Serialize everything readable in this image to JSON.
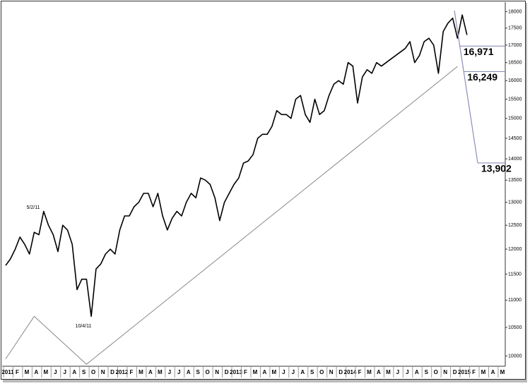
{
  "chart_data": {
    "type": "line",
    "log_scale": true,
    "grid": false,
    "connect_gaps_color": "#888888",
    "categories": [
      "2011",
      null,
      "F",
      null,
      "M",
      null,
      "A",
      null,
      "M",
      null,
      "J",
      null,
      "J",
      null,
      "A",
      null,
      "S",
      null,
      "O",
      null,
      "N",
      null,
      "D",
      null,
      "2012",
      null,
      "F",
      null,
      "M",
      null,
      "A",
      null,
      "M",
      null,
      "J",
      null,
      "J",
      null,
      "A",
      null,
      "S",
      null,
      "O",
      null,
      "N",
      null,
      "D",
      null,
      "2013",
      null,
      "F",
      null,
      "M",
      null,
      "A",
      null,
      "M",
      null,
      "J",
      null,
      "J",
      null,
      "A",
      null,
      "S",
      null,
      "O",
      null,
      "N",
      null,
      "D",
      null,
      "2014",
      null,
      "F",
      null,
      "M",
      null,
      "A",
      null,
      "M",
      null,
      "J",
      null,
      "J",
      null,
      "A",
      null,
      "S",
      null,
      "O",
      null,
      "N",
      null,
      "D",
      null,
      "2015",
      null,
      "F",
      null,
      "M",
      null,
      "A",
      null,
      "M",
      null
    ],
    "series": [
      {
        "color": "#000000",
        "values": [
          11670,
          11800,
          12000,
          12250,
          12100,
          11900,
          12350,
          12300,
          12800,
          12500,
          12300,
          11950,
          12500,
          12400,
          12100,
          11200,
          11400,
          11400,
          10700,
          11600,
          11700,
          11900,
          12000,
          11900,
          12400,
          12700,
          12700,
          12900,
          13000,
          13200,
          13200,
          12900,
          13200,
          12700,
          12400,
          12650,
          12800,
          12700,
          13000,
          13200,
          13100,
          13550,
          13500,
          13400,
          13100,
          12600,
          13000,
          13200,
          13400,
          13550,
          13900,
          13950,
          14100,
          14500,
          14600,
          14600,
          14800,
          15200,
          15100,
          15100,
          15000,
          15500,
          15600,
          15100,
          14900,
          15500,
          15100,
          15200,
          15600,
          15900,
          16000,
          15900,
          16500,
          16400,
          15400,
          16100,
          16300,
          16200,
          16500,
          16400,
          16500,
          16600,
          16700,
          16800,
          16900,
          17100,
          16500,
          16700,
          17100,
          17200,
          17000,
          16200,
          17400,
          17650,
          17800,
          17200,
          17900,
          17300,
          null,
          null,
          null,
          null,
          null,
          null,
          null,
          null
        ]
      },
      {
        "color": "#888888",
        "connect_gaps": true,
        "values": [
          9950,
          null,
          null,
          null,
          null,
          null,
          10700,
          null,
          null,
          null,
          null,
          null,
          null,
          null,
          null,
          null,
          null,
          9860,
          null,
          null,
          null,
          null,
          null,
          null,
          null,
          null,
          null,
          null,
          null,
          null,
          null,
          null,
          null,
          null,
          null,
          null,
          null,
          null,
          null,
          null,
          null,
          null,
          null,
          null,
          null,
          null,
          null,
          null,
          null,
          null,
          null,
          null,
          null,
          null,
          null,
          null,
          null,
          null,
          null,
          null,
          null,
          null,
          null,
          null,
          null,
          null,
          null,
          null,
          null,
          null,
          null,
          null,
          null,
          null,
          null,
          null,
          null,
          null,
          null,
          null,
          null,
          null,
          null,
          null,
          null,
          null,
          null,
          null,
          null,
          null,
          null,
          null,
          null,
          null,
          null,
          16390,
          null,
          null,
          null,
          null,
          null,
          null,
          null,
          null,
          null,
          null
        ]
      }
    ],
    "ylim": [
      9850,
      18250
    ],
    "yticks": [
      10000,
      10500,
      11000,
      11500,
      12000,
      12500,
      13000,
      13500,
      14000,
      14500,
      15000,
      15500,
      16000,
      16500,
      17000,
      17500,
      18000
    ],
    "annotations": [
      {
        "value": 16971,
        "label": "16,971"
      },
      {
        "value": 16249,
        "label": "16,249"
      },
      {
        "value": 13902,
        "label": "13,902"
      }
    ],
    "annotation_color": "#8a8fb8",
    "date_labels": [
      "5/2/11",
      "10/4/11"
    ]
  }
}
